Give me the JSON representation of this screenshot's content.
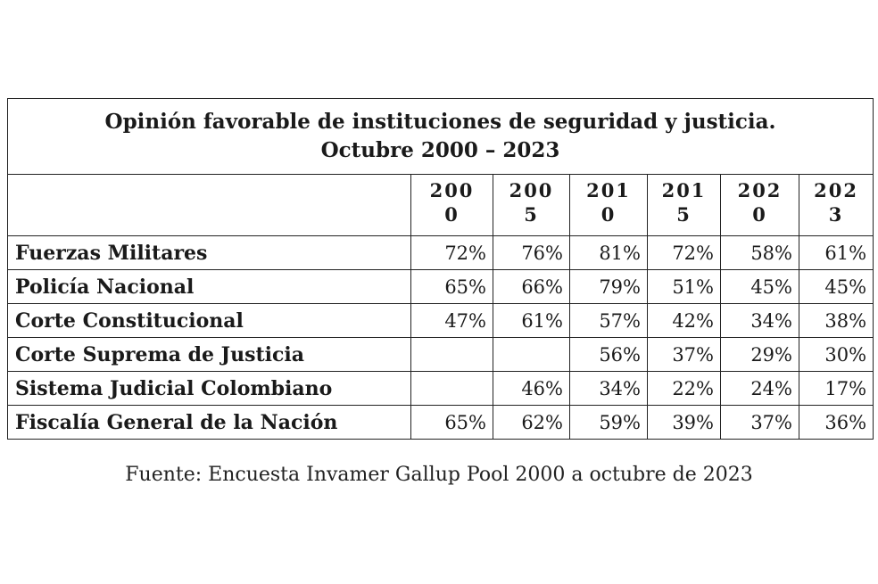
{
  "table": {
    "title_line1": "Opinión favorable de instituciones de seguridad y justicia.",
    "title_line2": "Octubre 2000 – 2023",
    "years": [
      {
        "top": "200",
        "bottom": "0"
      },
      {
        "top": "200",
        "bottom": "5"
      },
      {
        "top": "201",
        "bottom": "0"
      },
      {
        "top": "201",
        "bottom": "5"
      },
      {
        "top": "202",
        "bottom": "0"
      },
      {
        "top": "202",
        "bottom": "3"
      }
    ],
    "rows": [
      {
        "label": "Fuerzas Militares",
        "values": [
          "72%",
          "76%",
          "81%",
          "72%",
          "58%",
          "61%"
        ]
      },
      {
        "label": "Policía Nacional",
        "values": [
          "65%",
          "66%",
          "79%",
          "51%",
          "45%",
          "45%"
        ]
      },
      {
        "label": "Corte Constitucional",
        "values": [
          "47%",
          "61%",
          "57%",
          "42%",
          "34%",
          "38%"
        ]
      },
      {
        "label": "Corte Suprema de Justicia",
        "values": [
          "",
          "",
          "56%",
          "37%",
          "29%",
          "30%"
        ]
      },
      {
        "label": "Sistema Judicial Colombiano",
        "values": [
          "",
          "46%",
          "34%",
          "22%",
          "24%",
          "17%"
        ]
      },
      {
        "label": "Fiscalía General de la Nación",
        "values": [
          "65%",
          "62%",
          "59%",
          "39%",
          "37%",
          "36%"
        ]
      }
    ]
  },
  "source": "Fuente: Encuesta Invamer Gallup Pool 2000 a octubre de 2023"
}
